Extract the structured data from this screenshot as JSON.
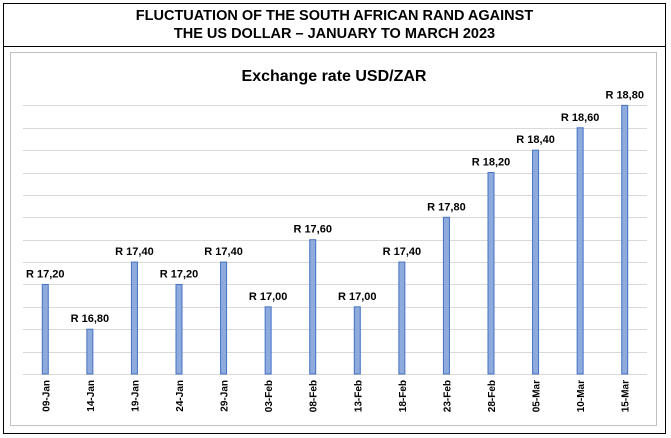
{
  "header": {
    "line1": "FLUCTUATION OF THE SOUTH AFRICAN RAND AGAINST",
    "line2": "THE US DOLLAR – JANUARY TO MARCH 2023"
  },
  "chart_data": {
    "type": "bar",
    "title": "Exchange rate USD/ZAR",
    "xlabel": "",
    "ylabel": "",
    "categories": [
      "09-Jan",
      "14-Jan",
      "19-Jan",
      "24-Jan",
      "29-Jan",
      "03-Feb",
      "08-Feb",
      "13-Feb",
      "18-Feb",
      "23-Feb",
      "28-Feb",
      "05-Mar",
      "10-Mar",
      "15-Mar"
    ],
    "values": [
      17.2,
      16.8,
      17.4,
      17.2,
      17.4,
      17.0,
      17.6,
      17.0,
      17.4,
      17.8,
      18.2,
      18.4,
      18.6,
      18.8
    ],
    "data_labels": [
      "R 17,20",
      "R 16,80",
      "R 17,40",
      "R 17,20",
      "R 17,40",
      "R 17,00",
      "R 17,60",
      "R 17,00",
      "R 17,40",
      "R 17,80",
      "R 18,20",
      "R 18,40",
      "R 18,60",
      "R 18,80"
    ],
    "ylim": [
      16.4,
      19.0
    ],
    "grid": true,
    "legend": "none",
    "bar_color": "#8faadc",
    "bar_edge_color": "#4472c4"
  }
}
